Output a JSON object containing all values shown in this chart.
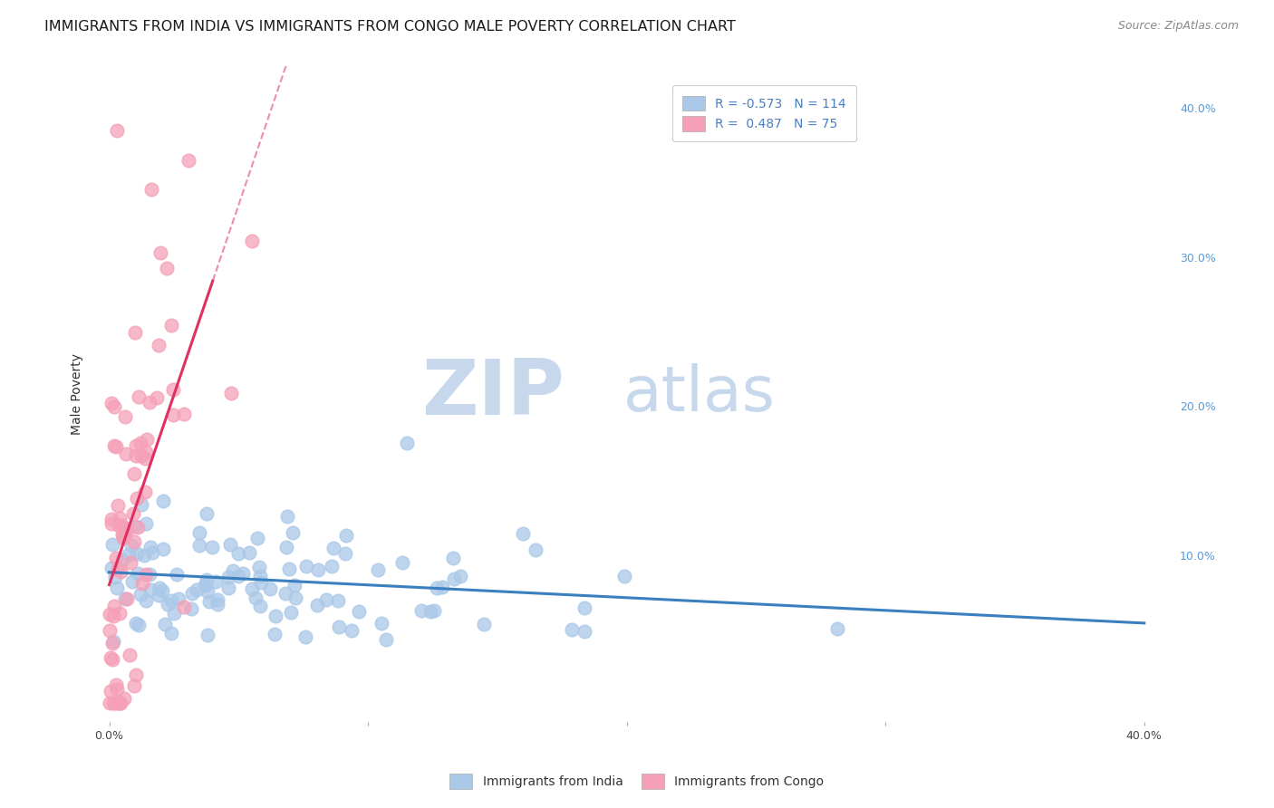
{
  "title": "IMMIGRANTS FROM INDIA VS IMMIGRANTS FROM CONGO MALE POVERTY CORRELATION CHART",
  "source": "Source: ZipAtlas.com",
  "ylabel": "Male Poverty",
  "india_R": -0.573,
  "india_N": 114,
  "congo_R": 0.487,
  "congo_N": 75,
  "india_color": "#aac8e8",
  "congo_color": "#f5a0b8",
  "india_line_color": "#3a7fbf",
  "congo_line_color": "#e03060",
  "background_color": "#ffffff",
  "grid_color": "#cccccc",
  "watermark_zip": "ZIP",
  "watermark_atlas": "atlas",
  "watermark_color": "#c8d8ec",
  "legend_label_india": "Immigrants from India",
  "legend_label_congo": "Immigrants from Congo",
  "title_fontsize": 11.5,
  "axis_label_fontsize": 10,
  "tick_fontsize": 9,
  "legend_fontsize": 10
}
